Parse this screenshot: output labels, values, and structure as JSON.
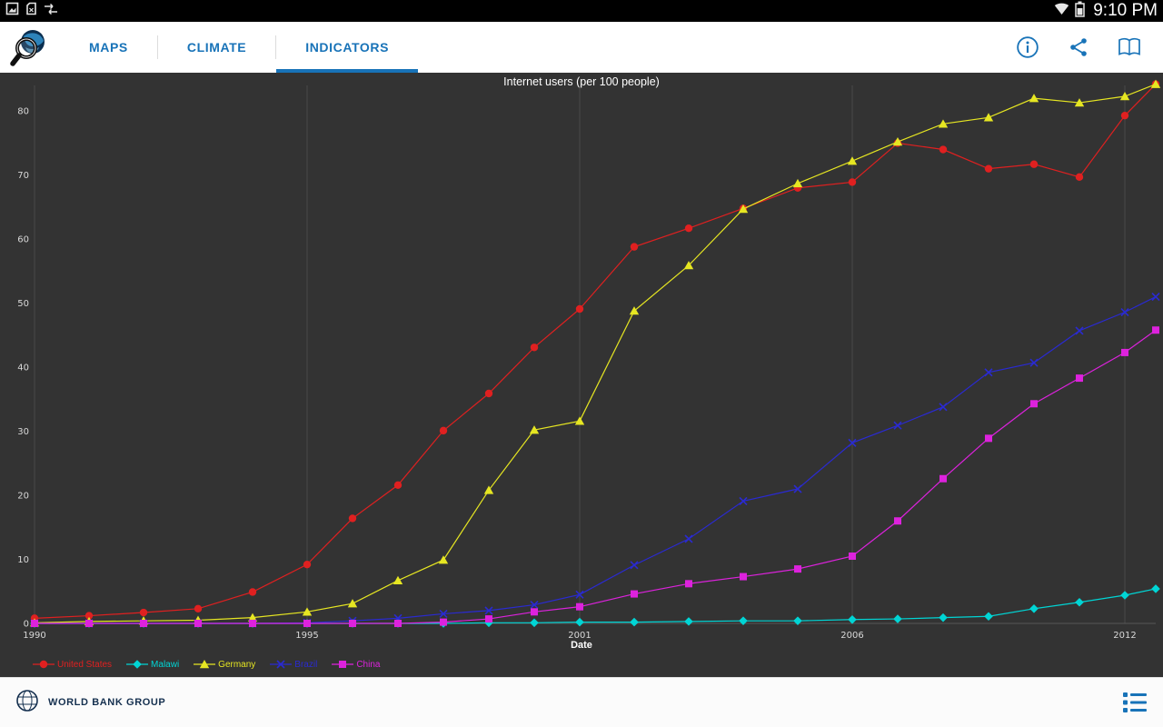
{
  "colors": {
    "accent": "#1873b8",
    "chart_background": "#333333",
    "grid_line": "#4a4a4a",
    "tick_text": "#d8d8d8"
  },
  "status_bar": {
    "time": "9:10 PM",
    "left_icons": [
      "screenshot-icon",
      "no-sim-icon",
      "usb-transfer-icon"
    ],
    "right_icons": [
      "wifi-icon",
      "battery-icon"
    ]
  },
  "toolbar": {
    "tabs": [
      {
        "label": "MAPS",
        "active": false
      },
      {
        "label": "CLIMATE",
        "active": false
      },
      {
        "label": "INDICATORS",
        "active": true
      }
    ],
    "actions": [
      "info-icon",
      "share-icon",
      "reader-icon"
    ]
  },
  "chart_data": {
    "type": "line",
    "title": "Internet users (per 100 people)",
    "xlabel": "Date",
    "ylabel": "",
    "x": [
      1990,
      1991,
      1992,
      1993,
      1994,
      1995,
      1996,
      1997,
      1998,
      1999,
      2000,
      2001,
      2002,
      2003,
      2004,
      2005,
      2006,
      2007,
      2008,
      2009,
      2010,
      2011,
      2012,
      2013
    ],
    "x_ticks": [
      1990,
      1995,
      2001,
      2006,
      2012
    ],
    "y_ticks": [
      0,
      10,
      20,
      30,
      40,
      50,
      60,
      70,
      80
    ],
    "ylim": [
      0,
      85
    ],
    "grid": "vertical",
    "legend_position": "bottom-left",
    "series": [
      {
        "name": "United States",
        "color": "#e02020",
        "marker": "circle",
        "values": [
          0.8,
          1.2,
          1.7,
          2.3,
          4.9,
          9.2,
          16.4,
          21.6,
          30.1,
          35.9,
          43.1,
          49.1,
          58.8,
          61.7,
          64.8,
          68.0,
          68.9,
          75.0,
          74.0,
          71.0,
          71.7,
          69.7,
          79.3,
          84.2
        ]
      },
      {
        "name": "Malawi",
        "color": "#00d5d5",
        "marker": "diamond",
        "values": [
          0,
          0,
          0,
          0,
          0,
          0,
          0,
          0,
          0,
          0.1,
          0.1,
          0.2,
          0.2,
          0.3,
          0.4,
          0.4,
          0.6,
          0.7,
          0.9,
          1.1,
          2.3,
          3.3,
          4.4,
          5.4
        ]
      },
      {
        "name": "Germany",
        "color": "#e6e622",
        "marker": "triangle",
        "values": [
          0.1,
          0.3,
          0.4,
          0.5,
          0.9,
          1.8,
          3.1,
          6.7,
          9.9,
          20.8,
          30.2,
          31.6,
          48.8,
          55.9,
          64.7,
          68.7,
          72.2,
          75.2,
          78.0,
          79.0,
          82.0,
          81.3,
          82.3,
          84.2
        ]
      },
      {
        "name": "Brazil",
        "color": "#2a2ad2",
        "marker": "x",
        "values": [
          0,
          0,
          0,
          0,
          0,
          0.1,
          0.4,
          0.8,
          1.5,
          2.0,
          2.9,
          4.5,
          9.1,
          13.2,
          19.1,
          21.0,
          28.2,
          30.9,
          33.8,
          39.2,
          40.7,
          45.7,
          48.6,
          51.0
        ]
      },
      {
        "name": "China",
        "color": "#dd22dd",
        "marker": "square",
        "values": [
          0,
          0,
          0,
          0,
          0,
          0,
          0,
          0,
          0.2,
          0.7,
          1.8,
          2.6,
          4.6,
          6.2,
          7.3,
          8.5,
          10.5,
          16.0,
          22.6,
          28.9,
          34.3,
          38.3,
          42.3,
          45.8
        ]
      }
    ]
  },
  "footer": {
    "brand": "WORLD BANK GROUP",
    "icons": [
      "list-icon"
    ]
  }
}
